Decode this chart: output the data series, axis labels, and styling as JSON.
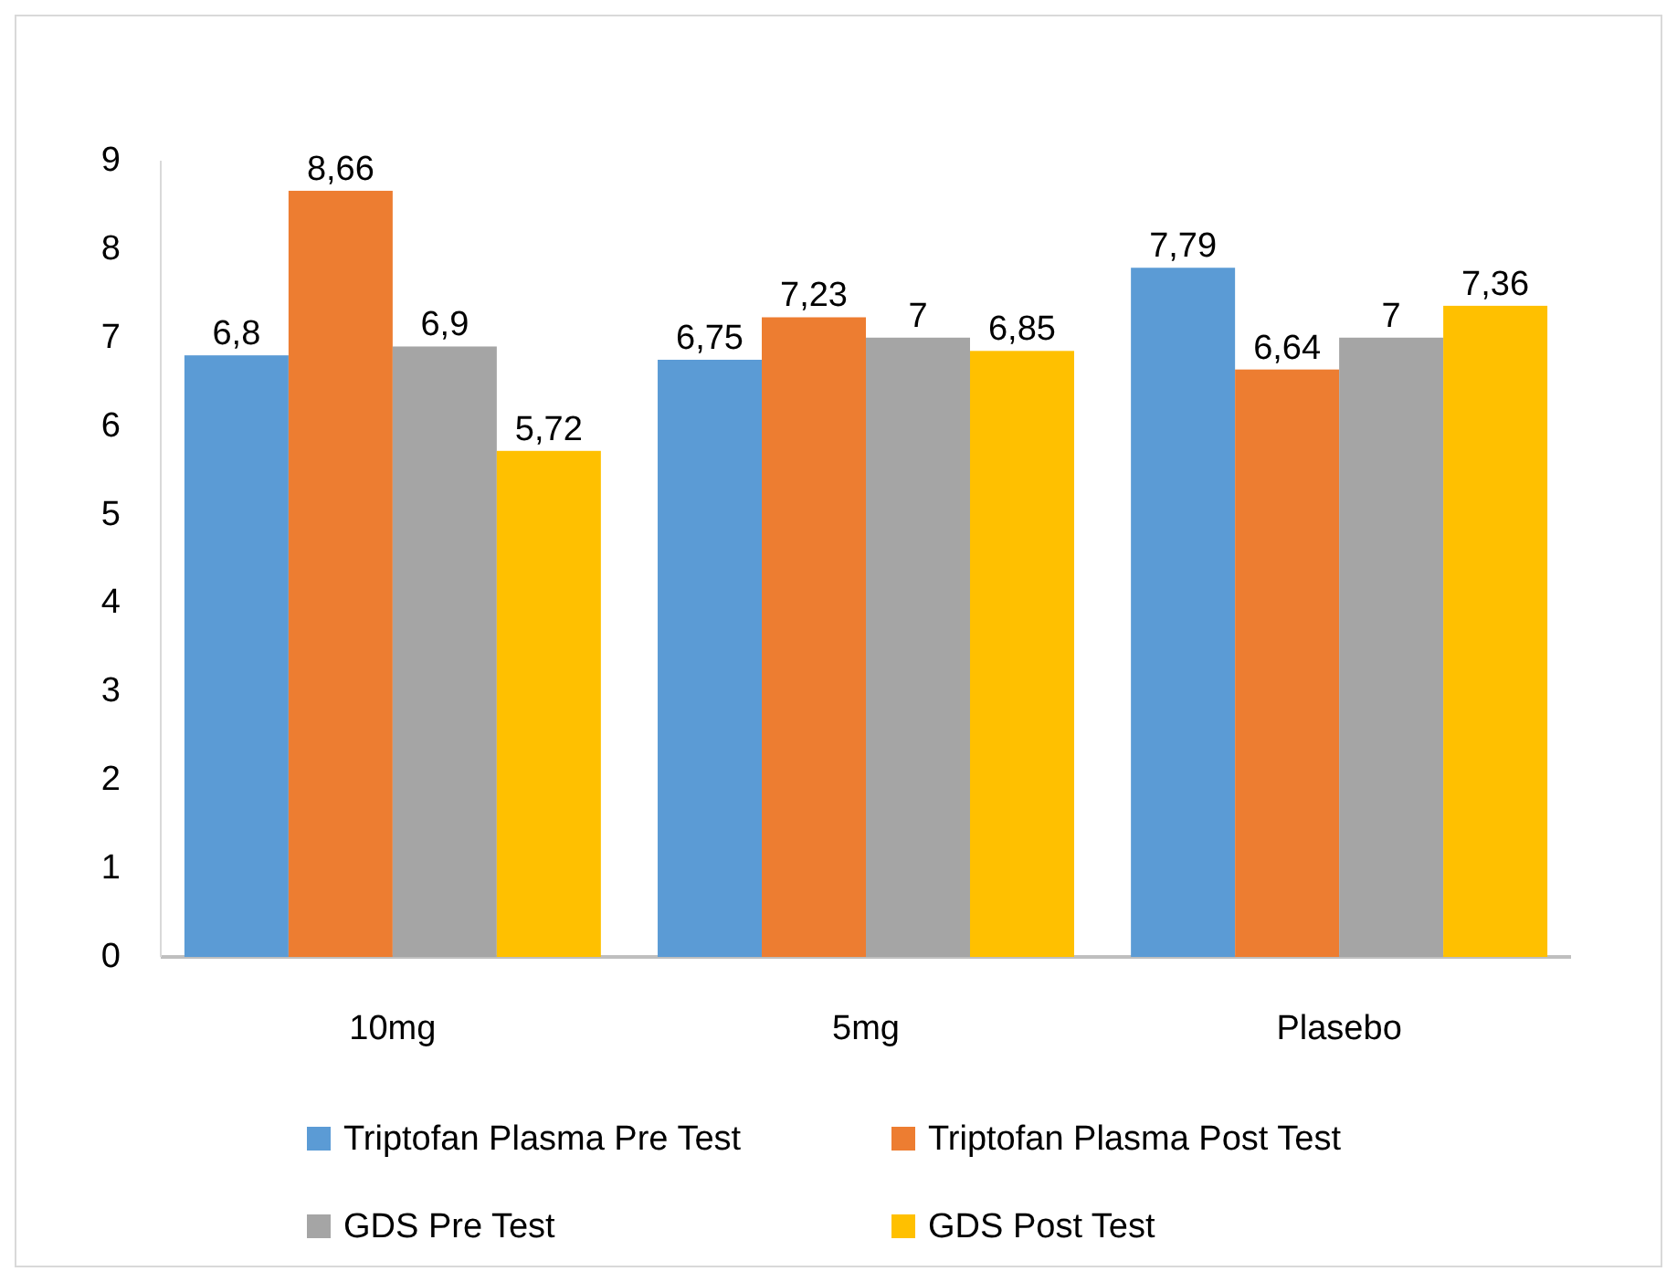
{
  "chart_data": {
    "type": "bar",
    "categories": [
      "10mg",
      "5mg",
      "Plasebo"
    ],
    "series": [
      {
        "name": "Triptofan Plasma Pre Test",
        "color": "#5b9bd5",
        "values": [
          6.8,
          6.75,
          7.79
        ],
        "value_labels": [
          "6,8",
          "6,75",
          "7,79"
        ]
      },
      {
        "name": "Triptofan Plasma Post Test",
        "color": "#ed7d31",
        "values": [
          8.66,
          7.23,
          6.64
        ],
        "value_labels": [
          "8,66",
          "7,23",
          "6,64"
        ]
      },
      {
        "name": "GDS Pre Test",
        "color": "#a5a5a5",
        "values": [
          6.9,
          7,
          7
        ],
        "value_labels": [
          "6,9",
          "7",
          "7"
        ]
      },
      {
        "name": "GDS Post Test",
        "color": "#ffc000",
        "values": [
          5.72,
          6.85,
          7.36
        ],
        "value_labels": [
          "5,72",
          "6,85",
          "7,36"
        ]
      }
    ],
    "ylim": [
      0,
      9
    ],
    "yticks": [
      0,
      1,
      2,
      3,
      4,
      5,
      6,
      7,
      8,
      9
    ],
    "grid": false,
    "legend": "bottom"
  }
}
